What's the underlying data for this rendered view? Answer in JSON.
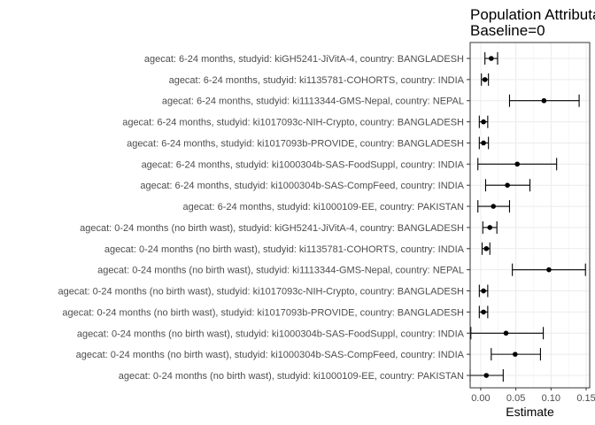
{
  "chart_data": {
    "type": "forest",
    "title": [
      "Population Attributable Difference",
      "Baseline=0"
    ],
    "xlabel": "Estimate",
    "ylabel": "",
    "xlim": [
      -0.015,
      0.155
    ],
    "xticks": [
      "0.00",
      "0.05",
      "0.10",
      "0.15"
    ],
    "xtick_values": [
      0.0,
      0.05,
      0.1,
      0.15
    ],
    "grid": true,
    "rows": [
      {
        "label": "agecat: 6-24 months, studyid: kiGH5241-JiVitA-4, country: BANGLADESH",
        "estimate": 0.015,
        "ci_lower": 0.006,
        "ci_upper": 0.024
      },
      {
        "label": "agecat: 6-24 months, studyid: ki1135781-COHORTS, country: INDIA",
        "estimate": 0.006,
        "ci_lower": 0.001,
        "ci_upper": 0.011
      },
      {
        "label": "agecat: 6-24 months, studyid: ki1113344-GMS-Nepal, country: NEPAL",
        "estimate": 0.09,
        "ci_lower": 0.041,
        "ci_upper": 0.14
      },
      {
        "label": "agecat: 6-24 months, studyid: ki1017093c-NIH-Crypto, country: BANGLADESH",
        "estimate": 0.004,
        "ci_lower": -0.002,
        "ci_upper": 0.01
      },
      {
        "label": "agecat: 6-24 months, studyid: ki1017093b-PROVIDE, country: BANGLADESH",
        "estimate": 0.004,
        "ci_lower": -0.002,
        "ci_upper": 0.011
      },
      {
        "label": "agecat: 6-24 months, studyid: ki1000304b-SAS-FoodSuppl, country: INDIA",
        "estimate": 0.052,
        "ci_lower": -0.004,
        "ci_upper": 0.108
      },
      {
        "label": "agecat: 6-24 months, studyid: ki1000304b-SAS-CompFeed, country: INDIA",
        "estimate": 0.038,
        "ci_lower": 0.007,
        "ci_upper": 0.07
      },
      {
        "label": "agecat: 6-24 months, studyid: ki1000109-EE, country: PAKISTAN",
        "estimate": 0.018,
        "ci_lower": -0.004,
        "ci_upper": 0.041
      },
      {
        "label": "agecat: 0-24 months (no birth wast), studyid: kiGH5241-JiVitA-4, country: BANGLADESH",
        "estimate": 0.013,
        "ci_lower": 0.003,
        "ci_upper": 0.023
      },
      {
        "label": "agecat: 0-24 months (no birth wast), studyid: ki1135781-COHORTS, country: INDIA",
        "estimate": 0.008,
        "ci_lower": 0.002,
        "ci_upper": 0.013
      },
      {
        "label": "agecat: 0-24 months (no birth wast), studyid: ki1113344-GMS-Nepal, country: NEPAL",
        "estimate": 0.097,
        "ci_lower": 0.045,
        "ci_upper": 0.149
      },
      {
        "label": "agecat: 0-24 months (no birth wast), studyid: ki1017093c-NIH-Crypto, country: BANGLADESH",
        "estimate": 0.004,
        "ci_lower": -0.002,
        "ci_upper": 0.01
      },
      {
        "label": "agecat: 0-24 months (no birth wast), studyid: ki1017093b-PROVIDE, country: BANGLADESH",
        "estimate": 0.004,
        "ci_lower": -0.002,
        "ci_upper": 0.01
      },
      {
        "label": "agecat: 0-24 months (no birth wast), studyid: ki1000304b-SAS-FoodSuppl, country: INDIA",
        "estimate": 0.036,
        "ci_lower": -0.014,
        "ci_upper": 0.089
      },
      {
        "label": "agecat: 0-24 months (no birth wast), studyid: ki1000304b-SAS-CompFeed, country: INDIA",
        "estimate": 0.049,
        "ci_lower": 0.015,
        "ci_upper": 0.085
      },
      {
        "label": "agecat: 0-24 months (no birth wast), studyid: ki1000109-EE, country: PAKISTAN",
        "estimate": 0.008,
        "ci_lower": -0.015,
        "ci_upper": 0.032
      }
    ]
  }
}
